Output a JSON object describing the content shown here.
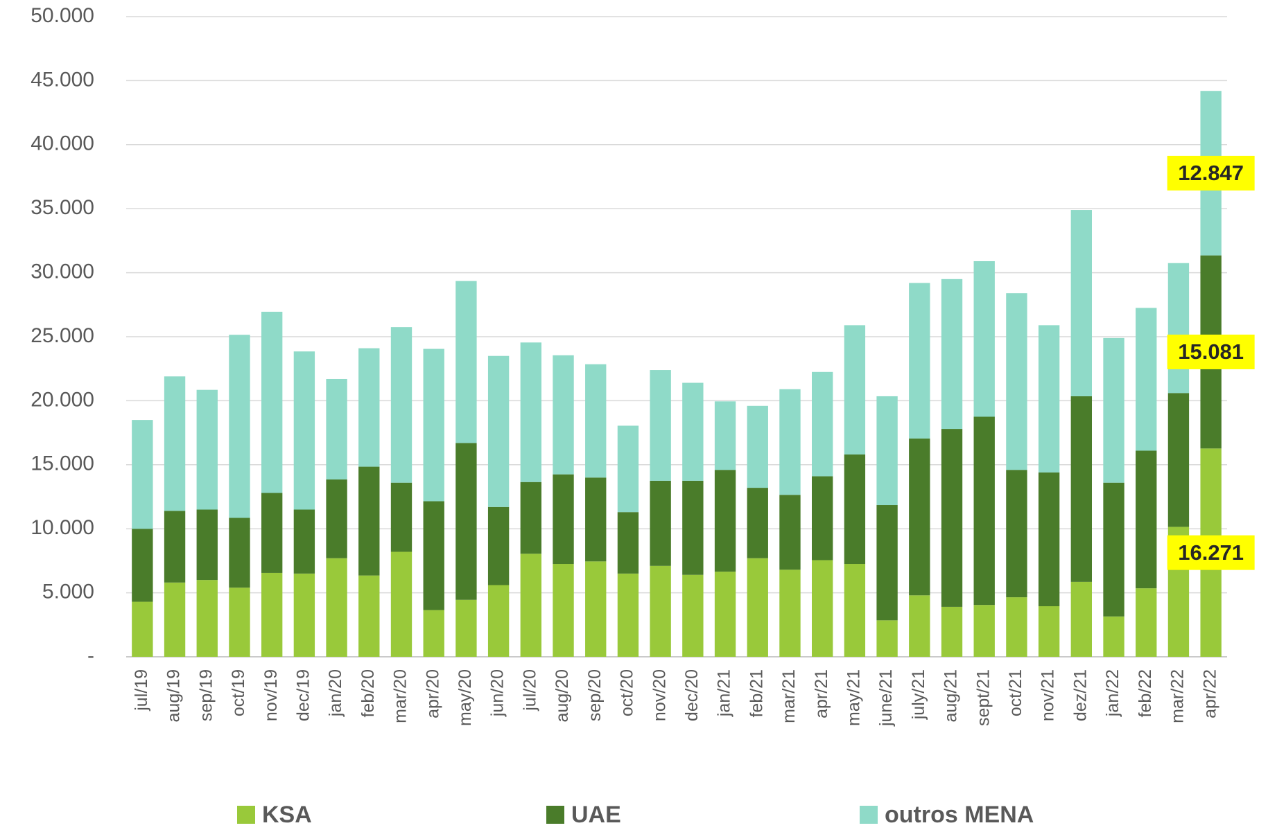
{
  "chart_data": {
    "type": "stacked-bar",
    "categories": [
      "jul/19",
      "aug/19",
      "sep/19",
      "oct/19",
      "nov/19",
      "dec/19",
      "jan/20",
      "feb/20",
      "mar/20",
      "apr/20",
      "may/20",
      "jun/20",
      "jul/20",
      "aug/20",
      "sep/20",
      "oct/20",
      "nov/20",
      "dec/20",
      "jan/21",
      "feb/21",
      "mar/21",
      "apr/21",
      "may/21",
      "june/21",
      "july/21",
      "aug/21",
      "sept/21",
      "oct/21",
      "nov/21",
      "dez/21",
      "jan/22",
      "feb/22",
      "mar/22",
      "apr/22"
    ],
    "series": [
      {
        "name": "KSA",
        "color": "#99c93a",
        "values": [
          4300,
          5800,
          6000,
          5400,
          6550,
          6500,
          7700,
          6350,
          8200,
          3650,
          4450,
          5600,
          8050,
          7250,
          7450,
          6500,
          7100,
          6400,
          6650,
          7700,
          6800,
          7550,
          7250,
          2850,
          4800,
          3900,
          4050,
          4650,
          3950,
          5850,
          3150,
          5350,
          10150,
          16271
        ],
        "value_labels": [
          null,
          null,
          null,
          null,
          null,
          null,
          null,
          null,
          null,
          null,
          null,
          null,
          null,
          null,
          null,
          null,
          null,
          null,
          null,
          null,
          null,
          null,
          null,
          null,
          null,
          null,
          null,
          null,
          null,
          null,
          null,
          null,
          null,
          "16.271"
        ]
      },
      {
        "name": "UAE",
        "color": "#4a7c2a",
        "values": [
          5700,
          5600,
          5500,
          5450,
          6250,
          5000,
          6150,
          8500,
          5400,
          8500,
          12250,
          6100,
          5600,
          7000,
          6550,
          4800,
          6650,
          7350,
          7950,
          5500,
          5850,
          6550,
          8550,
          9000,
          12250,
          13900,
          14700,
          9950,
          10450,
          14500,
          10450,
          10750,
          10450,
          15081
        ],
        "value_labels": [
          null,
          null,
          null,
          null,
          null,
          null,
          null,
          null,
          null,
          null,
          null,
          null,
          null,
          null,
          null,
          null,
          null,
          null,
          null,
          null,
          null,
          null,
          null,
          null,
          null,
          null,
          null,
          null,
          null,
          null,
          null,
          null,
          null,
          "15.081"
        ]
      },
      {
        "name": "outros MENA",
        "color": "#8fdac8",
        "values": [
          8500,
          10500,
          9350,
          14300,
          14150,
          12350,
          7850,
          9250,
          12150,
          11900,
          12650,
          11800,
          10900,
          9300,
          8850,
          6750,
          8650,
          7650,
          5350,
          6400,
          8250,
          8150,
          10100,
          8500,
          12150,
          11700,
          12150,
          13800,
          11500,
          14550,
          11300,
          11150,
          10150,
          12847
        ],
        "value_labels": [
          null,
          null,
          null,
          null,
          null,
          null,
          null,
          null,
          null,
          null,
          null,
          null,
          null,
          null,
          null,
          null,
          null,
          null,
          null,
          null,
          null,
          null,
          null,
          null,
          null,
          null,
          null,
          null,
          null,
          null,
          null,
          null,
          null,
          "12.847"
        ]
      }
    ],
    "ylim": [
      0,
      50000
    ],
    "yticks": [
      {
        "value": 0,
        "label": "-"
      },
      {
        "value": 5000,
        "label": "5.000"
      },
      {
        "value": 10000,
        "label": "10.000"
      },
      {
        "value": 15000,
        "label": "15.000"
      },
      {
        "value": 20000,
        "label": "20.000"
      },
      {
        "value": 25000,
        "label": "25.000"
      },
      {
        "value": 30000,
        "label": "30.000"
      },
      {
        "value": 35000,
        "label": "35.000"
      },
      {
        "value": 40000,
        "label": "40.000"
      },
      {
        "value": 45000,
        "label": "45.000"
      },
      {
        "value": 50000,
        "label": "50.000"
      }
    ],
    "grid": true,
    "legend": "bottom",
    "label_color": "#ffff00"
  }
}
